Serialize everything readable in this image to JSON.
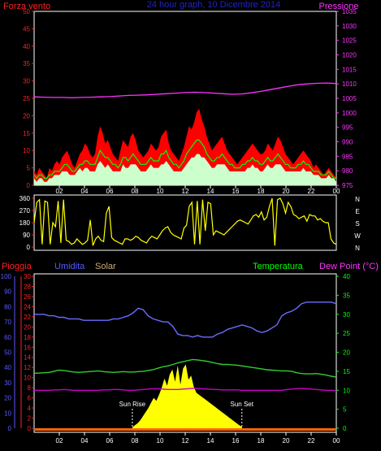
{
  "header": {
    "left_title": "Forza vento",
    "center_title": "24 hour graph, 10 Dicembre 2014",
    "right_title": "Pressione"
  },
  "colors": {
    "background": "#000000",
    "frame": "#ffffff",
    "wind_gust": "#ff0000",
    "wind_avg": "#00ff00",
    "wind_speed": "#ccffcc",
    "pressure": "#ff33ff",
    "direction": "#ffff00",
    "humidity": "#6b6bff",
    "temperature": "#33cc33",
    "dew_point": "#cc00cc",
    "solar": "#ffff00",
    "rain": "#ff0000",
    "axis_red": "#ff2222",
    "axis_green": "#00ff00",
    "axis_blue": "#5a5aff",
    "axis_magenta": "#ff33ff",
    "axis_orange": "#ff6600",
    "axis_tan": "#ccaa77"
  },
  "chart_data": [
    {
      "type": "area",
      "panel": "wind",
      "x_tick_labels": [
        "02",
        "04",
        "06",
        "08",
        "10",
        "12",
        "14",
        "16",
        "18",
        "20",
        "22",
        "00"
      ],
      "y_left_label": "Forza vento",
      "y_left_ticks": [
        0,
        5,
        10,
        15,
        20,
        25,
        30,
        35,
        40,
        45,
        50
      ],
      "y_left_range": [
        0,
        50
      ],
      "y_right_label": "Pressione",
      "y_right_ticks": [
        975,
        980,
        985,
        990,
        995,
        1000,
        1005,
        1010,
        1015,
        1020,
        1025,
        1030,
        1035
      ],
      "y_right_range": [
        975,
        1035
      ],
      "series": [
        {
          "name": "Forza vento",
          "style": "gust",
          "values": [
            4,
            3,
            5,
            4,
            3,
            2,
            5,
            4,
            6,
            7,
            6,
            8,
            9,
            10,
            8,
            6,
            5,
            7,
            9,
            10,
            12,
            11,
            9,
            8,
            9,
            14,
            17,
            15,
            12,
            13,
            11,
            9,
            8,
            7,
            10,
            13,
            12,
            11,
            14,
            15,
            13,
            10,
            9,
            8,
            9,
            10,
            12,
            11,
            10,
            11,
            14,
            15,
            16,
            12,
            10,
            9,
            8,
            7,
            9,
            11,
            14,
            17,
            16,
            18,
            21,
            22,
            19,
            17,
            14,
            12,
            10,
            11,
            12,
            13,
            14,
            12,
            10,
            9,
            8,
            7,
            6,
            7,
            8,
            9,
            10,
            11,
            12,
            11,
            10,
            9,
            9,
            10,
            12,
            11,
            10,
            12,
            14,
            13,
            11,
            9,
            8,
            7,
            6,
            7,
            8,
            9,
            10,
            9,
            8,
            7,
            5,
            6,
            5,
            4,
            3,
            4,
            5,
            4,
            3,
            2
          ]
        },
        {
          "style": "average",
          "values": [
            3,
            2,
            3,
            3,
            2,
            2,
            3,
            3,
            4,
            4,
            4,
            5,
            6,
            6,
            5,
            4,
            4,
            5,
            6,
            6,
            7,
            7,
            6,
            6,
            6,
            8,
            10,
            9,
            8,
            8,
            7,
            6,
            6,
            5,
            6,
            8,
            8,
            7,
            8,
            9,
            8,
            7,
            6,
            6,
            6,
            7,
            8,
            7,
            7,
            7,
            9,
            9,
            10,
            8,
            7,
            6,
            6,
            5,
            6,
            7,
            9,
            10,
            11,
            12,
            13,
            13,
            12,
            11,
            9,
            8,
            7,
            7,
            8,
            8,
            9,
            8,
            7,
            6,
            6,
            5,
            5,
            5,
            6,
            6,
            7,
            7,
            8,
            7,
            7,
            6,
            6,
            7,
            8,
            7,
            7,
            8,
            9,
            8,
            7,
            6,
            6,
            5,
            5,
            5,
            6,
            6,
            7,
            6,
            6,
            5,
            4,
            4,
            4,
            3,
            3,
            3,
            4,
            3,
            2,
            2
          ]
        },
        {
          "style": "speed",
          "values": [
            2,
            1,
            2,
            2,
            1,
            1,
            2,
            2,
            3,
            3,
            3,
            4,
            4,
            4,
            3,
            3,
            3,
            4,
            5,
            4,
            5,
            5,
            4,
            4,
            4,
            6,
            7,
            6,
            5,
            6,
            5,
            4,
            4,
            4,
            4,
            6,
            5,
            5,
            6,
            6,
            6,
            5,
            4,
            4,
            4,
            5,
            6,
            5,
            5,
            5,
            6,
            6,
            7,
            6,
            5,
            4,
            4,
            4,
            4,
            5,
            6,
            7,
            8,
            8,
            9,
            9,
            8,
            8,
            7,
            6,
            5,
            5,
            6,
            6,
            6,
            6,
            5,
            4,
            4,
            4,
            4,
            4,
            4,
            4,
            5,
            5,
            6,
            5,
            5,
            4,
            4,
            5,
            6,
            5,
            5,
            6,
            6,
            6,
            5,
            4,
            4,
            4,
            4,
            4,
            4,
            4,
            5,
            4,
            4,
            4,
            3,
            3,
            3,
            2,
            2,
            2,
            3,
            2,
            2,
            1
          ]
        },
        {
          "name": "Pressione",
          "style": "pressure",
          "values": [
            1005.5,
            1005.4,
            1005.3,
            1005.3,
            1005.2,
            1005.3,
            1005.4,
            1005.5,
            1005.6,
            1005.8,
            1006.0,
            1006.1,
            1006.2,
            1006.4,
            1006.6,
            1006.8,
            1007.0,
            1007.1,
            1007.0,
            1006.8,
            1006.6,
            1006.4,
            1006.5,
            1006.9,
            1007.4,
            1008.0,
            1008.6,
            1009.2,
            1009.7,
            1010.0,
            1010.2,
            1010.3,
            1010.1
          ]
        }
      ]
    },
    {
      "type": "line",
      "panel": "direction",
      "y_left_ticks": [
        0,
        90,
        180,
        270,
        360
      ],
      "y_left_range": [
        0,
        360
      ],
      "y_right_compass": [
        "N",
        "W",
        "S",
        "E",
        "N"
      ],
      "series": [
        {
          "style": "direction",
          "values": [
            180,
            330,
            350,
            20,
            340,
            330,
            20,
            180,
            150,
            340,
            30,
            350,
            50,
            40,
            20,
            30,
            60,
            40,
            20,
            30,
            50,
            200,
            10,
            60,
            80,
            50,
            40,
            250,
            300,
            70,
            50,
            40,
            30,
            20,
            60,
            60,
            50,
            60,
            80,
            70,
            50,
            40,
            30,
            60,
            80,
            70,
            60,
            90,
            120,
            140,
            150,
            110,
            90,
            80,
            70,
            60,
            140,
            160,
            300,
            330,
            20,
            340,
            20,
            350,
            120,
            330,
            320,
            90,
            120,
            110,
            100,
            90,
            110,
            130,
            150,
            170,
            190,
            200,
            190,
            180,
            170,
            200,
            230,
            240,
            220,
            260,
            200,
            220,
            300,
            360,
            10,
            350,
            360,
            320,
            250,
            330,
            300,
            240,
            230,
            210,
            220,
            230,
            190,
            240,
            230,
            230,
            200,
            210,
            190,
            180,
            180,
            60,
            30,
            20
          ]
        }
      ]
    },
    {
      "type": "line",
      "panel": "weather",
      "x_tick_labels": [
        "02",
        "04",
        "06",
        "08",
        "10",
        "12",
        "14",
        "16",
        "18",
        "20",
        "22",
        "00"
      ],
      "labels": {
        "rain": "Pioggia",
        "humidity": "Umidita",
        "solar": "Solar",
        "temperature": "Temperatura",
        "dew": "Dew Point (°C)"
      },
      "annotations": {
        "sunrise": "Sun Rise",
        "sunset": "Sun Set",
        "sunrise_hour": 7.8,
        "sunset_hour": 16.5
      },
      "axis_humidity_ticks": [
        0,
        10,
        20,
        30,
        40,
        50,
        60,
        70,
        80,
        90,
        100
      ],
      "axis_rain_ticks": [
        0,
        2,
        4,
        6,
        8,
        10,
        12,
        14,
        16,
        18,
        20,
        22,
        24,
        26,
        28,
        30
      ],
      "axis_temp_ticks": [
        0,
        5,
        10,
        15,
        20,
        25,
        30,
        35,
        40
      ],
      "series": [
        {
          "name": "Umidita",
          "style": "humidity",
          "values": [
            75,
            75,
            75,
            74,
            74,
            73,
            73,
            72,
            72,
            72,
            71,
            71,
            71,
            71,
            71,
            71,
            72,
            72,
            73,
            74,
            76,
            79,
            78,
            74,
            72,
            71,
            70,
            70,
            67,
            62,
            61,
            61,
            60,
            61,
            60,
            60,
            60,
            62,
            63,
            65,
            66,
            67,
            68,
            67,
            66,
            64,
            63,
            64,
            66,
            68,
            74,
            76,
            77,
            79,
            82,
            83,
            83,
            83,
            83,
            83,
            83,
            82
          ]
        },
        {
          "name": "Temperatura",
          "style": "temperature",
          "values": [
            14.5,
            14.5,
            14.6,
            14.7,
            15.0,
            15.3,
            15.2,
            15.0,
            14.8,
            14.7,
            14.8,
            14.9,
            15.0,
            15.1,
            14.9,
            14.8,
            14.7,
            14.8,
            14.9,
            14.8,
            14.8,
            14.9,
            15.0,
            15.2,
            15.4,
            15.8,
            16.2,
            16.4,
            16.8,
            17.2,
            17.5,
            17.8,
            18.1,
            18.0,
            17.8,
            17.6,
            17.3,
            17.0,
            16.8,
            16.8,
            16.7,
            16.6,
            16.4,
            16.2,
            16.0,
            15.8,
            15.6,
            15.4,
            15.3,
            15.2,
            15.1,
            15.1,
            15.0,
            14.6,
            14.4,
            14.3,
            14.3,
            14.4,
            14.2,
            14.0,
            13.7,
            13.5
          ]
        },
        {
          "name": "Dew Point (°C)",
          "style": "dew",
          "values": [
            10.0,
            10.0,
            10.0,
            10.0,
            10.1,
            10.1,
            10.2,
            10.1,
            10.0,
            10.0,
            10.0,
            10.0,
            10.0,
            10.0,
            10.1,
            10.1,
            10.2,
            10.2,
            10.1,
            10.0,
            10.0,
            10.1,
            10.2,
            10.3,
            10.4,
            10.4,
            10.3,
            10.2,
            10.2,
            10.2,
            10.3,
            10.4,
            10.5,
            10.5,
            10.4,
            10.3,
            10.2,
            10.2,
            10.1,
            10.1,
            10.1,
            10.1,
            10.0,
            10.0,
            10.0,
            10.0,
            10.0,
            10.0,
            10.0,
            10.0,
            10.0,
            10.2,
            10.3,
            10.4,
            10.5,
            10.4,
            10.3,
            10.2,
            10.1,
            10.0,
            10.0,
            9.9
          ]
        },
        {
          "name": "Solar",
          "style": "solar",
          "start_hour": 7.8,
          "end_hour": 16.5,
          "values": [
            0.2,
            0.6,
            1.0,
            1.6,
            2.4,
            3.2,
            4.0,
            5.0,
            6.0,
            5.4,
            6.6,
            8.0,
            9.8,
            8.4,
            10.6,
            11.6,
            9.2,
            12.4,
            8.6,
            11.8,
            12.6,
            9.6,
            10.4,
            8.2,
            7.0,
            6.6,
            6.2,
            5.8,
            5.4,
            5.0,
            4.6,
            4.2,
            3.8,
            3.4,
            3.0,
            2.6,
            2.2,
            1.8,
            1.4,
            1.0,
            0.6,
            0.3
          ]
        },
        {
          "name": "Pioggia",
          "style": "rain",
          "values": [
            0,
            0,
            0,
            0,
            0,
            0,
            0,
            0,
            0,
            0,
            0,
            0
          ]
        }
      ]
    }
  ]
}
